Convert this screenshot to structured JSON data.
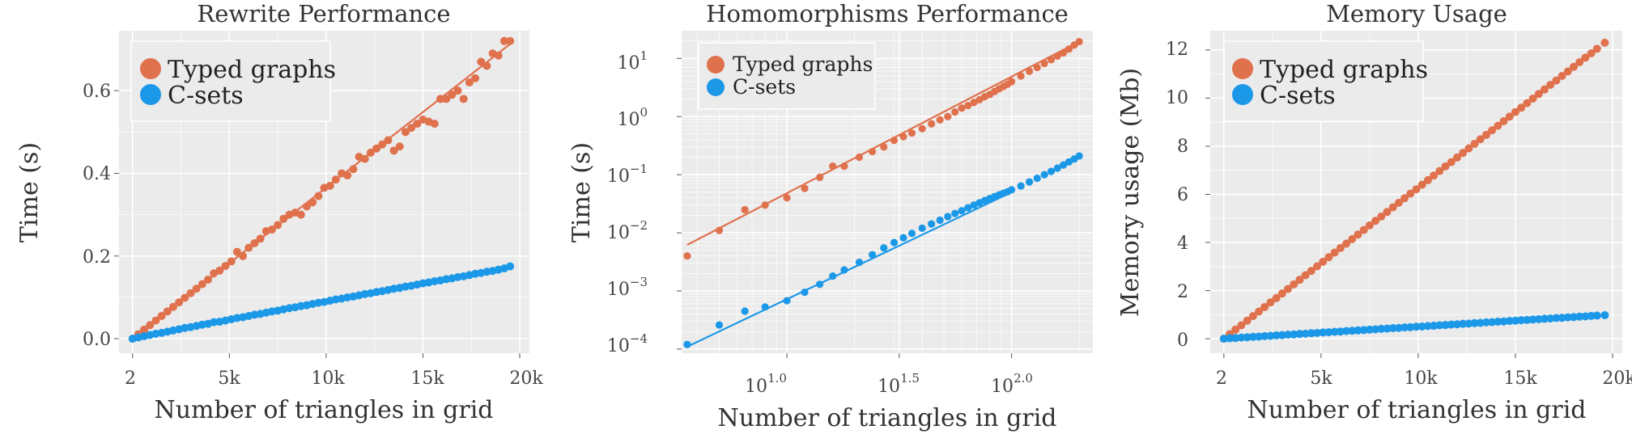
{
  "colors": {
    "typed": "#E0714D",
    "csets": "#1B98E8",
    "panel_bg": "#EBEBEB",
    "grid": "#FFFFFF"
  },
  "chart_data": [
    {
      "type": "scatter",
      "title": "Rewrite Performance",
      "xlabel": "Number of triangles in grid",
      "ylabel": "Time (s)",
      "xlim": [
        -700,
        20500
      ],
      "ylim": [
        -0.035,
        0.745
      ],
      "xscale": "linear",
      "yscale": "linear",
      "grid": true,
      "legend": "top-left",
      "xticks": [
        2,
        5000,
        10000,
        15000,
        20000
      ],
      "xtick_labels": [
        "2",
        "5k",
        "10k",
        "15k",
        "20k"
      ],
      "yticks": [
        0.0,
        0.2,
        0.4,
        0.6
      ],
      "ytick_labels": [
        "0.0",
        "0.2",
        "0.4",
        "0.6"
      ],
      "series": [
        {
          "name": "Typed graphs",
          "color_key": "typed",
          "fit": [
            [
              2,
              0.0
            ],
            [
              19700,
              0.72
            ]
          ],
          "x": [
            2,
            300,
            600,
            900,
            1200,
            1500,
            1800,
            2100,
            2400,
            2700,
            3000,
            3300,
            3600,
            3900,
            4200,
            4500,
            4800,
            5100,
            5400,
            5700,
            6000,
            6300,
            6600,
            6900,
            7200,
            7500,
            7800,
            8100,
            8400,
            8700,
            9000,
            9300,
            9600,
            9900,
            10200,
            10500,
            10800,
            11100,
            11400,
            11700,
            12000,
            12300,
            12600,
            12900,
            13200,
            13500,
            13800,
            14100,
            14400,
            14700,
            15000,
            15300,
            15600,
            15900,
            16200,
            16500,
            16800,
            17100,
            17400,
            17700,
            18000,
            18300,
            18600,
            18900,
            19200,
            19500
          ],
          "y": [
            0.0,
            0.011,
            0.022,
            0.033,
            0.044,
            0.055,
            0.066,
            0.077,
            0.088,
            0.099,
            0.11,
            0.121,
            0.132,
            0.143,
            0.158,
            0.165,
            0.176,
            0.187,
            0.21,
            0.2,
            0.22,
            0.231,
            0.242,
            0.26,
            0.264,
            0.275,
            0.29,
            0.3,
            0.305,
            0.3,
            0.32,
            0.33,
            0.345,
            0.365,
            0.37,
            0.385,
            0.4,
            0.395,
            0.41,
            0.44,
            0.435,
            0.45,
            0.46,
            0.47,
            0.48,
            0.455,
            0.465,
            0.5,
            0.51,
            0.52,
            0.53,
            0.525,
            0.52,
            0.58,
            0.58,
            0.59,
            0.6,
            0.58,
            0.62,
            0.63,
            0.67,
            0.66,
            0.69,
            0.685,
            0.72,
            0.72
          ]
        },
        {
          "name": "C-sets",
          "color_key": "csets",
          "x": [
            2,
            300,
            600,
            900,
            1200,
            1500,
            1800,
            2100,
            2400,
            2700,
            3000,
            3300,
            3600,
            3900,
            4200,
            4500,
            4800,
            5100,
            5400,
            5700,
            6000,
            6300,
            6600,
            6900,
            7200,
            7500,
            7800,
            8100,
            8400,
            8700,
            9000,
            9300,
            9600,
            9900,
            10200,
            10500,
            10800,
            11100,
            11400,
            11700,
            12000,
            12300,
            12600,
            12900,
            13200,
            13500,
            13800,
            14100,
            14400,
            14700,
            15000,
            15300,
            15600,
            15900,
            16200,
            16500,
            16800,
            17100,
            17400,
            17700,
            18000,
            18300,
            18600,
            18900,
            19200,
            19500
          ],
          "y": [
            0.0,
            0.003,
            0.006,
            0.009,
            0.012,
            0.014,
            0.017,
            0.02,
            0.023,
            0.026,
            0.028,
            0.031,
            0.034,
            0.036,
            0.04,
            0.041,
            0.044,
            0.047,
            0.05,
            0.052,
            0.055,
            0.058,
            0.06,
            0.063,
            0.066,
            0.068,
            0.071,
            0.074,
            0.076,
            0.079,
            0.081,
            0.084,
            0.087,
            0.089,
            0.092,
            0.095,
            0.097,
            0.1,
            0.102,
            0.105,
            0.108,
            0.11,
            0.113,
            0.115,
            0.118,
            0.121,
            0.123,
            0.126,
            0.128,
            0.131,
            0.134,
            0.136,
            0.139,
            0.141,
            0.144,
            0.146,
            0.149,
            0.151,
            0.154,
            0.157,
            0.159,
            0.162,
            0.164,
            0.167,
            0.17,
            0.175
          ]
        }
      ]
    },
    {
      "type": "scatter",
      "title": "Homomorphisms Performance",
      "xlabel": "Number of triangles in grid",
      "ylabel": "Time (s)",
      "xscale": "log",
      "yscale": "log",
      "xlim": [
        3.4,
        230
      ],
      "ylim": [
        8.5e-05,
        30
      ],
      "grid": true,
      "legend": "top-left",
      "xticks": [
        10,
        31.62,
        100
      ],
      "xtick_labels": [
        "10",
        "1.0",
        "10",
        "1.5",
        "10",
        "2.0"
      ],
      "yticks": [
        0.0001,
        0.001,
        0.01,
        0.1,
        1,
        10
      ],
      "ytick_labels": [
        "10",
        "−4",
        "10",
        "−3",
        "10",
        "−2",
        "10",
        "−1",
        "10",
        "0",
        "10",
        "1"
      ],
      "series": [
        {
          "name": "Typed graphs",
          "color_key": "typed",
          "fit": [
            [
              3.6,
              0.0062
            ],
            [
              200,
              19.5
            ]
          ],
          "x": [
            3.6,
            5,
            6.5,
            8,
            10,
            12,
            14,
            16,
            18,
            21,
            24,
            27,
            30,
            33,
            36,
            40,
            44,
            48,
            52,
            56,
            60,
            64,
            68,
            72,
            76,
            80,
            84,
            88,
            92,
            96,
            100,
            110,
            120,
            130,
            140,
            150,
            160,
            170,
            180,
            190,
            200
          ],
          "y": [
            0.004,
            0.011,
            0.025,
            0.03,
            0.04,
            0.058,
            0.09,
            0.14,
            0.14,
            0.2,
            0.25,
            0.3,
            0.39,
            0.45,
            0.52,
            0.62,
            0.75,
            0.88,
            1.0,
            1.2,
            1.4,
            1.55,
            1.75,
            1.95,
            2.2,
            2.4,
            2.7,
            3.0,
            3.3,
            3.6,
            4.0,
            5.0,
            6.0,
            7.0,
            8.2,
            9.5,
            11,
            12.5,
            14.5,
            17,
            19.5
          ]
        },
        {
          "name": "C-sets",
          "color_key": "csets",
          "fit": [
            [
              3.6,
              0.00011
            ],
            [
              100,
              0.05
            ]
          ],
          "x": [
            3.6,
            5,
            6.5,
            8,
            10,
            12,
            14,
            16,
            18,
            21,
            24,
            27,
            30,
            33,
            36,
            40,
            44,
            48,
            52,
            56,
            60,
            64,
            68,
            72,
            76,
            80,
            84,
            88,
            92,
            96,
            100,
            110,
            120,
            130,
            140,
            150,
            160,
            170,
            180,
            190,
            200
          ],
          "y": [
            0.00012,
            0.00026,
            0.00045,
            0.00053,
            0.00068,
            0.00095,
            0.0013,
            0.0018,
            0.0023,
            0.0031,
            0.0042,
            0.0055,
            0.0068,
            0.0082,
            0.0098,
            0.012,
            0.0142,
            0.0165,
            0.019,
            0.0215,
            0.024,
            0.027,
            0.03,
            0.033,
            0.036,
            0.039,
            0.042,
            0.045,
            0.048,
            0.051,
            0.055,
            0.064,
            0.075,
            0.087,
            0.1,
            0.114,
            0.13,
            0.147,
            0.166,
            0.186,
            0.21
          ]
        }
      ]
    },
    {
      "type": "scatter",
      "title": "Memory Usage",
      "xlabel": "Number of triangles in grid",
      "ylabel": "Memory usage (Mb)",
      "xlim": [
        -700,
        20500
      ],
      "ylim": [
        -0.6,
        12.8
      ],
      "xscale": "linear",
      "yscale": "linear",
      "grid": true,
      "legend": "top-left",
      "xticks": [
        2,
        5000,
        10000,
        15000,
        20000
      ],
      "xtick_labels": [
        "2",
        "5k",
        "10k",
        "15k",
        "20k"
      ],
      "yticks": [
        0,
        2,
        4,
        6,
        8,
        10,
        12
      ],
      "ytick_labels": [
        "0",
        "2",
        "4",
        "6",
        "8",
        "10",
        "12"
      ],
      "series": [
        {
          "name": "Typed graphs",
          "color_key": "typed",
          "x": [
            2,
            300,
            600,
            900,
            1200,
            1500,
            1800,
            2100,
            2400,
            2700,
            3000,
            3300,
            3600,
            3900,
            4200,
            4500,
            4800,
            5100,
            5400,
            5700,
            6000,
            6300,
            6600,
            6900,
            7200,
            7500,
            7800,
            8100,
            8400,
            8700,
            9000,
            9300,
            9600,
            9900,
            10200,
            10500,
            10800,
            11100,
            11400,
            11700,
            12000,
            12300,
            12600,
            12900,
            13200,
            13500,
            13800,
            14100,
            14400,
            14700,
            15000,
            15300,
            15600,
            15900,
            16200,
            16500,
            16800,
            17100,
            17400,
            17700,
            18000,
            18300,
            18600,
            18900,
            19200,
            19600
          ],
          "y": [
            0.0,
            0.19,
            0.38,
            0.56,
            0.75,
            0.94,
            1.13,
            1.32,
            1.51,
            1.69,
            1.88,
            2.07,
            2.26,
            2.45,
            2.64,
            2.82,
            3.01,
            3.2,
            3.39,
            3.58,
            3.77,
            3.95,
            4.14,
            4.33,
            4.52,
            4.71,
            4.9,
            5.08,
            5.27,
            5.46,
            5.65,
            5.84,
            6.03,
            6.21,
            6.4,
            6.59,
            6.78,
            6.97,
            7.16,
            7.34,
            7.53,
            7.72,
            7.91,
            8.1,
            8.29,
            8.47,
            8.66,
            8.85,
            9.04,
            9.23,
            9.42,
            9.6,
            9.79,
            9.98,
            10.17,
            10.36,
            10.55,
            10.73,
            10.92,
            11.11,
            11.3,
            11.49,
            11.68,
            11.86,
            12.05,
            12.3
          ]
        },
        {
          "name": "C-sets",
          "color_key": "csets",
          "x": [
            2,
            300,
            600,
            900,
            1200,
            1500,
            1800,
            2100,
            2400,
            2700,
            3000,
            3300,
            3600,
            3900,
            4200,
            4500,
            4800,
            5100,
            5400,
            5700,
            6000,
            6300,
            6600,
            6900,
            7200,
            7500,
            7800,
            8100,
            8400,
            8700,
            9000,
            9300,
            9600,
            9900,
            10200,
            10500,
            10800,
            11100,
            11400,
            11700,
            12000,
            12300,
            12600,
            12900,
            13200,
            13500,
            13800,
            14100,
            14400,
            14700,
            15000,
            15300,
            15600,
            15900,
            16200,
            16500,
            16800,
            17100,
            17400,
            17700,
            18000,
            18300,
            18600,
            18900,
            19200,
            19600
          ],
          "y": [
            0.0,
            0.02,
            0.03,
            0.05,
            0.06,
            0.08,
            0.09,
            0.11,
            0.12,
            0.14,
            0.15,
            0.17,
            0.18,
            0.2,
            0.21,
            0.23,
            0.24,
            0.26,
            0.27,
            0.29,
            0.3,
            0.32,
            0.33,
            0.35,
            0.36,
            0.38,
            0.39,
            0.41,
            0.42,
            0.44,
            0.45,
            0.47,
            0.48,
            0.5,
            0.51,
            0.53,
            0.54,
            0.56,
            0.57,
            0.59,
            0.6,
            0.62,
            0.63,
            0.65,
            0.66,
            0.68,
            0.69,
            0.71,
            0.72,
            0.74,
            0.75,
            0.77,
            0.78,
            0.8,
            0.81,
            0.83,
            0.84,
            0.86,
            0.87,
            0.89,
            0.9,
            0.92,
            0.93,
            0.95,
            0.96,
            0.98
          ]
        }
      ]
    }
  ]
}
